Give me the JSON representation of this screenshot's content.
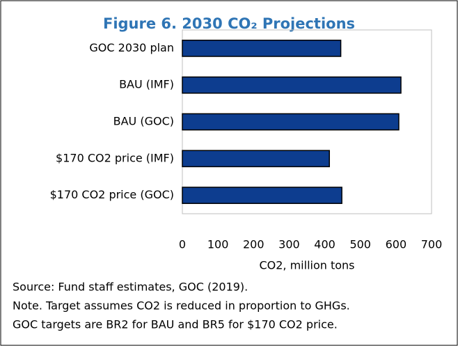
{
  "chart_data": {
    "type": "barh",
    "title": "Figure 6. 2030 CO₂ Projections",
    "categories": [
      "GOC 2030 plan",
      "BAU (IMF)",
      "BAU (GOC)",
      "$170 CO2 price (IMF)",
      "$170 CO2 price (GOC)"
    ],
    "values": [
      445,
      614,
      608,
      413,
      448
    ],
    "color": "#0d3d8f",
    "xlim": [
      0,
      700
    ],
    "xticks": [
      0,
      100,
      200,
      300,
      400,
      500,
      600,
      700
    ],
    "xlabel": "CO2, million tons",
    "grid": false,
    "notes": [
      "Source: Fund staff estimates, GOC (2019).",
      "Note. Target assumes CO2 is reduced in proportion to GHGs.",
      "GOC targets are BR2 for BAU and BR5 for $170 CO2 price."
    ]
  }
}
